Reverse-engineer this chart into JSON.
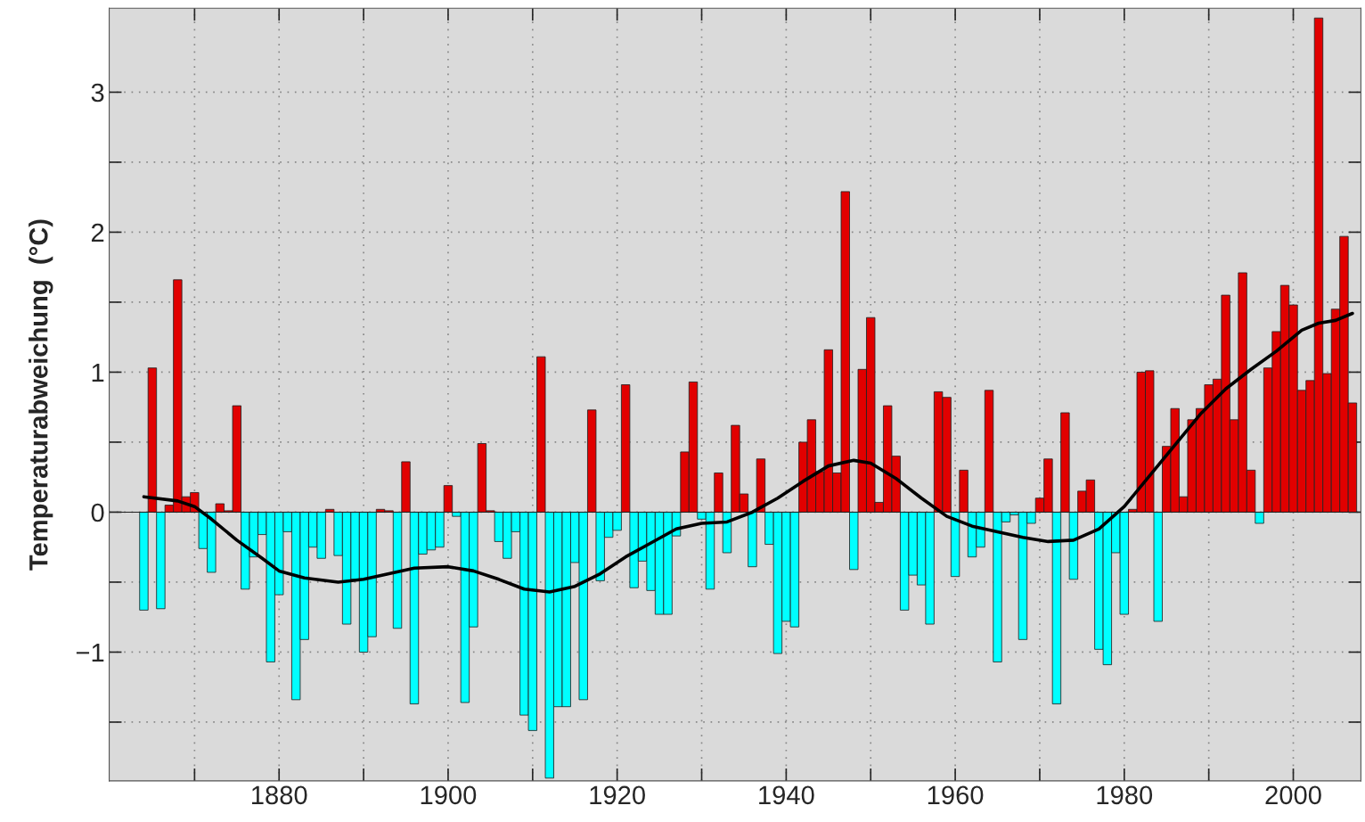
{
  "chart_data": {
    "type": "bar",
    "ylabel": "Temperaturabweichung  (°C)",
    "xlim": [
      1859.9,
      2008
    ],
    "xticks": [
      {
        "value": 1870,
        "label": null
      },
      1880,
      {
        "value": 1890,
        "label": null
      },
      1900,
      {
        "value": 1910,
        "label": null
      },
      1920,
      {
        "value": 1930,
        "label": null
      },
      1940,
      {
        "value": 1950,
        "label": null
      },
      1960,
      {
        "value": 1970,
        "label": null
      },
      1980,
      {
        "value": 1990,
        "label": null
      },
      2000
    ],
    "ylim": [
      -1.92,
      3.6
    ],
    "yticks": [
      {
        "value": -1.5,
        "label": null
      },
      {
        "value": -1,
        "label": "−1"
      },
      {
        "value": -0.5,
        "label": null
      },
      0,
      {
        "value": 0.5,
        "label": null
      },
      1,
      {
        "value": 1.5,
        "label": null
      },
      2,
      {
        "value": 2.5,
        "label": null
      },
      3
    ],
    "grid": true,
    "series": [
      {
        "x": [
          1864,
          1865,
          1866,
          1867,
          1868,
          1869,
          1870,
          1871,
          1872,
          1873,
          1874,
          1875,
          1876,
          1877,
          1878,
          1879,
          1880,
          1881,
          1882,
          1883,
          1884,
          1885,
          1886,
          1887,
          1888,
          1889,
          1890,
          1891,
          1892,
          1893,
          1894,
          1895,
          1896,
          1897,
          1898,
          1899,
          1900,
          1901,
          1902,
          1903,
          1904,
          1905,
          1906,
          1907,
          1908,
          1909,
          1910,
          1911,
          1912,
          1913,
          1914,
          1915,
          1916,
          1917,
          1918,
          1919,
          1920,
          1921,
          1922,
          1923,
          1924,
          1925,
          1926,
          1927,
          1928,
          1929,
          1930,
          1931,
          1932,
          1933,
          1934,
          1935,
          1936,
          1937,
          1938,
          1939,
          1940,
          1941,
          1942,
          1943,
          1944,
          1945,
          1946,
          1947,
          1948,
          1949,
          1950,
          1951,
          1952,
          1953,
          1954,
          1955,
          1956,
          1957,
          1958,
          1959,
          1960,
          1961,
          1962,
          1963,
          1964,
          1965,
          1966,
          1967,
          1968,
          1969,
          1970,
          1971,
          1972,
          1973,
          1974,
          1975,
          1976,
          1977,
          1978,
          1979,
          1980,
          1981,
          1982,
          1983,
          1984,
          1985,
          1986,
          1987,
          1988,
          1989,
          1990,
          1991,
          1992,
          1993,
          1994,
          1995,
          1996,
          1997,
          1998,
          1999,
          2000,
          2001,
          2002,
          2003,
          2004,
          2005,
          2006,
          2007
        ],
        "values": [
          -0.7,
          1.03,
          -0.69,
          0.05,
          1.66,
          0.11,
          0.14,
          -0.26,
          -0.43,
          0.06,
          0.01,
          0.76,
          -0.55,
          -0.32,
          -0.16,
          -1.07,
          -0.59,
          -0.14,
          -1.34,
          -0.91,
          -0.25,
          -0.33,
          0.02,
          -0.31,
          -0.8,
          -0.48,
          -1.0,
          -0.89,
          0.02,
          0.01,
          -0.83,
          0.36,
          -1.37,
          -0.3,
          -0.27,
          -0.25,
          0.19,
          -0.03,
          -1.36,
          -0.82,
          0.49,
          0.01,
          -0.21,
          -0.33,
          -0.14,
          -1.45,
          -1.56,
          1.11,
          -1.9,
          -1.39,
          -1.39,
          -0.36,
          -1.34,
          0.73,
          -0.49,
          -0.18,
          -0.13,
          0.91,
          -0.54,
          -0.35,
          -0.56,
          -0.73,
          -0.73,
          -0.17,
          0.43,
          0.93,
          -0.05,
          -0.55,
          0.28,
          -0.29,
          0.62,
          0.13,
          -0.39,
          0.38,
          -0.23,
          -1.01,
          -0.78,
          -0.82,
          0.5,
          0.66,
          0.29,
          1.16,
          0.28,
          2.29,
          -0.41,
          1.02,
          1.39,
          0.07,
          0.76,
          0.4,
          -0.7,
          -0.45,
          -0.52,
          -0.8,
          0.86,
          0.82,
          -0.46,
          0.3,
          -0.32,
          -0.25,
          0.87,
          -1.07,
          -0.07,
          -0.02,
          -0.91,
          -0.08,
          0.1,
          0.38,
          -1.37,
          0.71,
          -0.48,
          0.15,
          0.23,
          -0.98,
          -1.09,
          -0.29,
          -0.73,
          0.02,
          1.0,
          1.01,
          -0.78,
          0.47,
          0.74,
          0.11,
          0.66,
          0.74,
          0.91,
          0.95,
          1.55,
          0.66,
          1.71,
          0.3,
          -0.08,
          1.03,
          1.29,
          1.62,
          1.48,
          0.87,
          0.94,
          3.53,
          0.99,
          1.45,
          1.97,
          0.78
        ],
        "colors": [
          "#00ffff",
          "#e10000",
          "#00ffff",
          "#e10000",
          "#e10000",
          "#e10000",
          "#e10000",
          "#00ffff",
          "#00ffff",
          "#e10000",
          "#e10000",
          "#e10000",
          "#00ffff",
          "#00ffff",
          "#00ffff",
          "#00ffff",
          "#00ffff",
          "#00ffff",
          "#00ffff",
          "#00ffff",
          "#00ffff",
          "#00ffff",
          "#e10000",
          "#00ffff",
          "#00ffff",
          "#00ffff",
          "#00ffff",
          "#00ffff",
          "#e10000",
          "#e10000",
          "#00ffff",
          "#e10000",
          "#00ffff",
          "#00ffff",
          "#00ffff",
          "#00ffff",
          "#e10000",
          "#00ffff",
          "#00ffff",
          "#00ffff",
          "#e10000",
          "#e10000",
          "#00ffff",
          "#00ffff",
          "#00ffff",
          "#00ffff",
          "#00ffff",
          "#e10000",
          "#00ffff",
          "#00ffff",
          "#00ffff",
          "#00ffff",
          "#00ffff",
          "#e10000",
          "#00ffff",
          "#00ffff",
          "#00ffff",
          "#e10000",
          "#00ffff",
          "#00ffff",
          "#00ffff",
          "#00ffff",
          "#00ffff",
          "#00ffff",
          "#e10000",
          "#e10000",
          "#00ffff",
          "#00ffff",
          "#e10000",
          "#00ffff",
          "#e10000",
          "#e10000",
          "#00ffff",
          "#e10000",
          "#00ffff",
          "#00ffff",
          "#00ffff",
          "#00ffff",
          "#e10000",
          "#e10000",
          "#e10000",
          "#e10000",
          "#e10000",
          "#e10000",
          "#00ffff",
          "#e10000",
          "#e10000",
          "#e10000",
          "#e10000",
          "#e10000",
          "#00ffff",
          "#00ffff",
          "#00ffff",
          "#00ffff",
          "#e10000",
          "#e10000",
          "#00ffff",
          "#e10000",
          "#00ffff",
          "#00ffff",
          "#e10000",
          "#00ffff",
          "#00ffff",
          "#00ffff",
          "#00ffff",
          "#00ffff",
          "#e10000",
          "#e10000",
          "#00ffff",
          "#e10000",
          "#00ffff",
          "#e10000",
          "#e10000",
          "#00ffff",
          "#00ffff",
          "#00ffff",
          "#00ffff",
          "#e10000",
          "#e10000",
          "#e10000",
          "#00ffff",
          "#e10000",
          "#e10000",
          "#e10000",
          "#e10000",
          "#e10000",
          "#e10000",
          "#e10000",
          "#e10000",
          "#e10000",
          "#e10000",
          "#e10000",
          "#00ffff",
          "#e10000",
          "#e10000",
          "#e10000",
          "#e10000",
          "#e10000",
          "#e10000",
          "#e10000",
          "#e10000",
          "#e10000",
          "#e10000",
          "#e10000"
        ]
      },
      {
        "type": "line",
        "color": "#000000",
        "x": [
          1864,
          1868,
          1870,
          1872,
          1875,
          1878,
          1880,
          1883,
          1887,
          1890,
          1893,
          1896,
          1900,
          1903,
          1906,
          1909,
          1912,
          1915,
          1918,
          1921,
          1924,
          1927,
          1930,
          1933,
          1936,
          1939,
          1942,
          1945,
          1948,
          1950,
          1953,
          1956,
          1959,
          1962,
          1965,
          1968,
          1971,
          1974,
          1977,
          1980,
          1983,
          1986,
          1989,
          1992,
          1995,
          1998,
          2001,
          2003,
          2005,
          2007
        ],
        "values": [
          0.11,
          0.08,
          0.04,
          -0.05,
          -0.2,
          -0.33,
          -0.42,
          -0.47,
          -0.5,
          -0.48,
          -0.44,
          -0.4,
          -0.39,
          -0.42,
          -0.48,
          -0.55,
          -0.57,
          -0.53,
          -0.44,
          -0.32,
          -0.22,
          -0.12,
          -0.08,
          -0.07,
          0.0,
          0.1,
          0.22,
          0.33,
          0.37,
          0.35,
          0.24,
          0.1,
          -0.03,
          -0.1,
          -0.14,
          -0.18,
          -0.21,
          -0.2,
          -0.12,
          0.04,
          0.26,
          0.48,
          0.7,
          0.88,
          1.02,
          1.15,
          1.3,
          1.35,
          1.37,
          1.42
        ]
      }
    ]
  }
}
